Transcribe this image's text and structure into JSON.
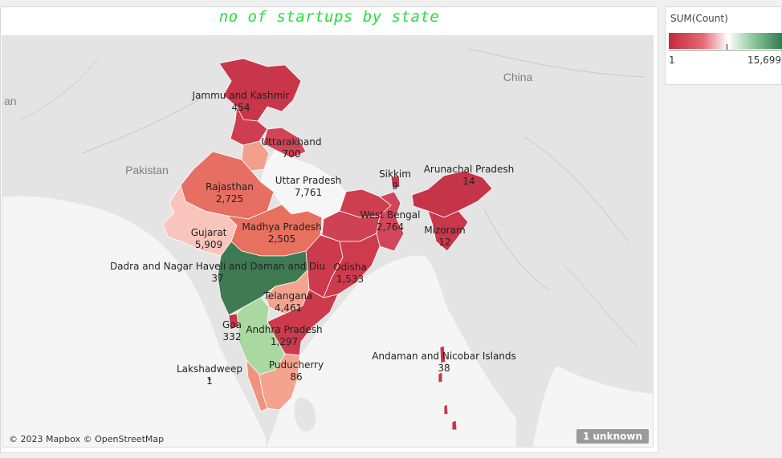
{
  "title": "no of startups by state",
  "attribution": "© 2023 Mapbox © OpenStreetMap",
  "unknown_badge": "1 unknown",
  "legend": {
    "title": "SUM(Count)",
    "min": "1",
    "max": "15,699",
    "colors": {
      "low": "#c22a3e",
      "mid": "#ffffff",
      "high": "#2f7a4c"
    }
  },
  "countries": {
    "pakistan": "Pakistan",
    "china": "China",
    "afghanistan_partial": "an"
  },
  "states": [
    {
      "name": "Jammu and Kashmir",
      "value": "454"
    },
    {
      "name": "Uttarakhand",
      "value": "700"
    },
    {
      "name": "Rajasthan",
      "value": "2,725"
    },
    {
      "name": "Uttar Pradesh",
      "value": "7,761"
    },
    {
      "name": "Sikkim",
      "value": "9"
    },
    {
      "name": "Arunachal Pradesh",
      "value": "14"
    },
    {
      "name": "West Bengal",
      "value": "2,764"
    },
    {
      "name": "Mizoram",
      "value": "12"
    },
    {
      "name": "Gujarat",
      "value": "5,909"
    },
    {
      "name": "Madhya Pradesh",
      "value": "2,505"
    },
    {
      "name": "Dadra and Nagar Haveli and Daman and Diu",
      "value": "37"
    },
    {
      "name": "Odisha",
      "value": "1,533"
    },
    {
      "name": "Telangana",
      "value": "4,461"
    },
    {
      "name": "Goa",
      "value": "332"
    },
    {
      "name": "Andhra Pradesh",
      "value": "1,297"
    },
    {
      "name": "Lakshadweep",
      "value": "1"
    },
    {
      "name": "Puducherry",
      "value": "86"
    },
    {
      "name": "Andaman and Nicobar Islands",
      "value": "38"
    }
  ]
}
